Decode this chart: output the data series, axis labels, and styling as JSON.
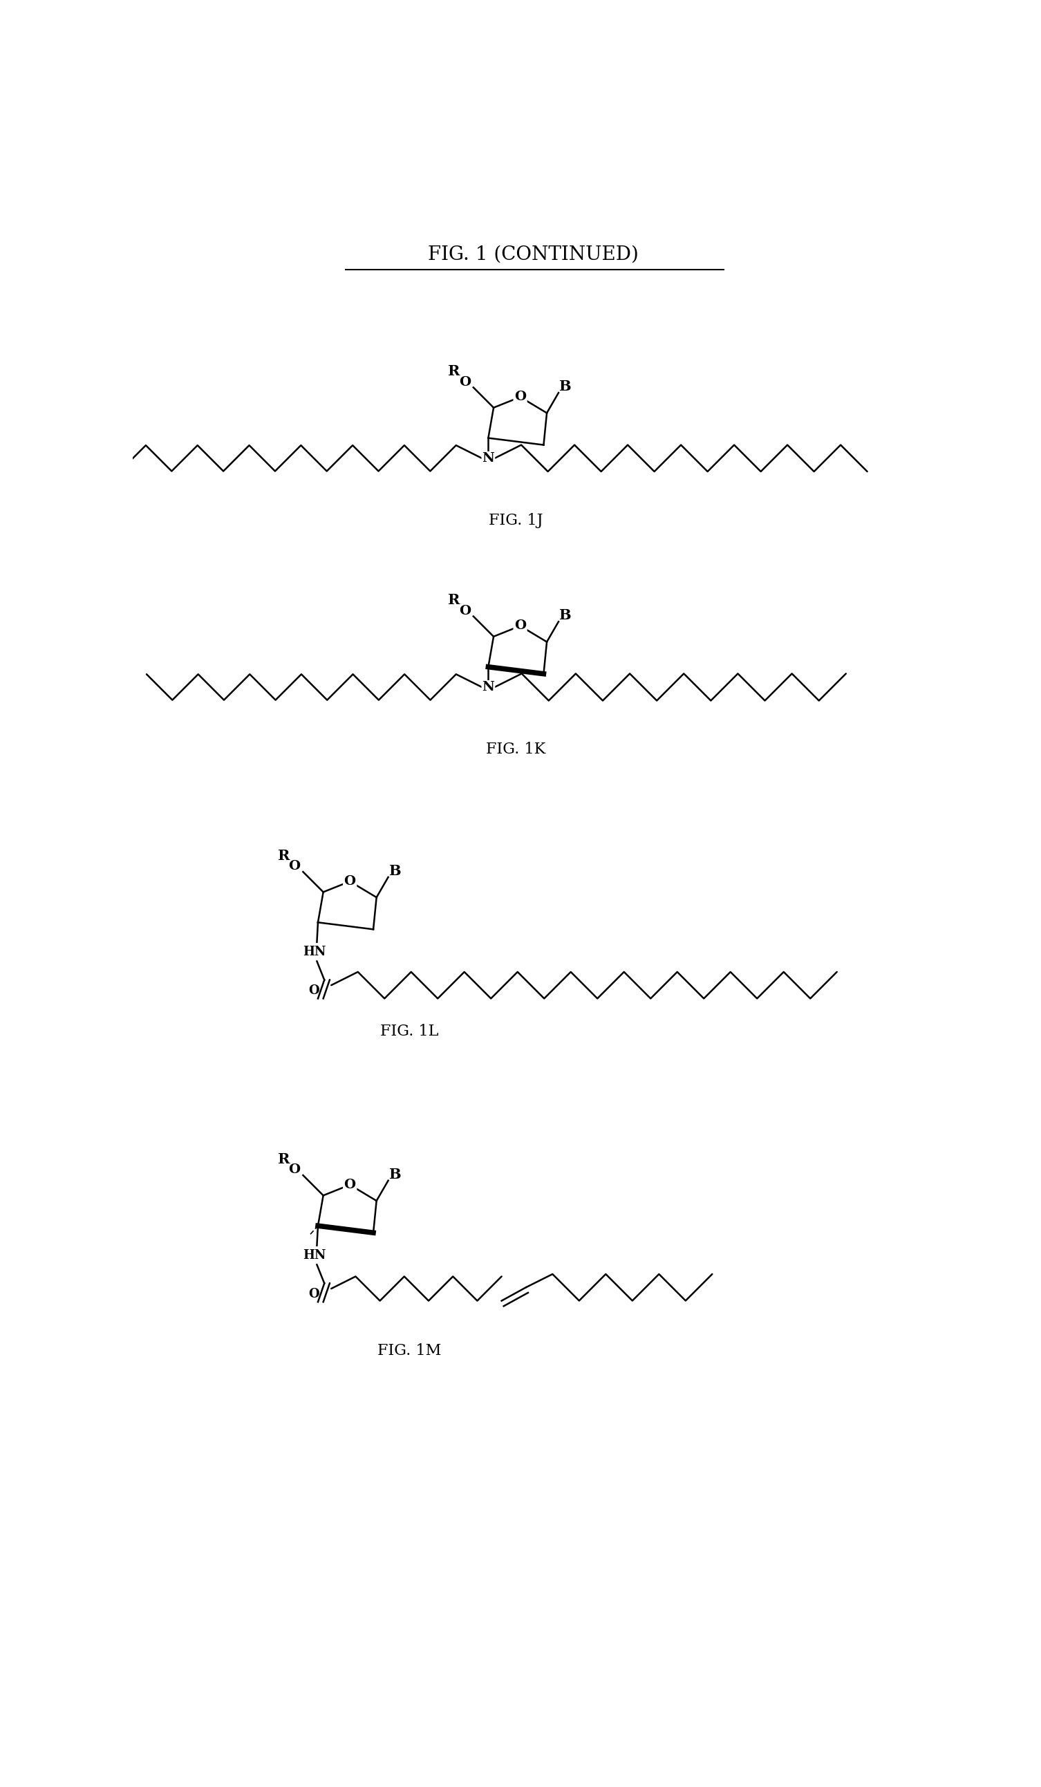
{
  "title": "FIG. 1 (CONTINUED)",
  "background_color": "#ffffff",
  "text_color": "#000000",
  "figures": [
    "FIG. 1J",
    "FIG. 1K",
    "FIG. 1L",
    "FIG. 1M"
  ],
  "fig_fontsize": 16,
  "title_fontsize": 20,
  "lw": 1.8
}
